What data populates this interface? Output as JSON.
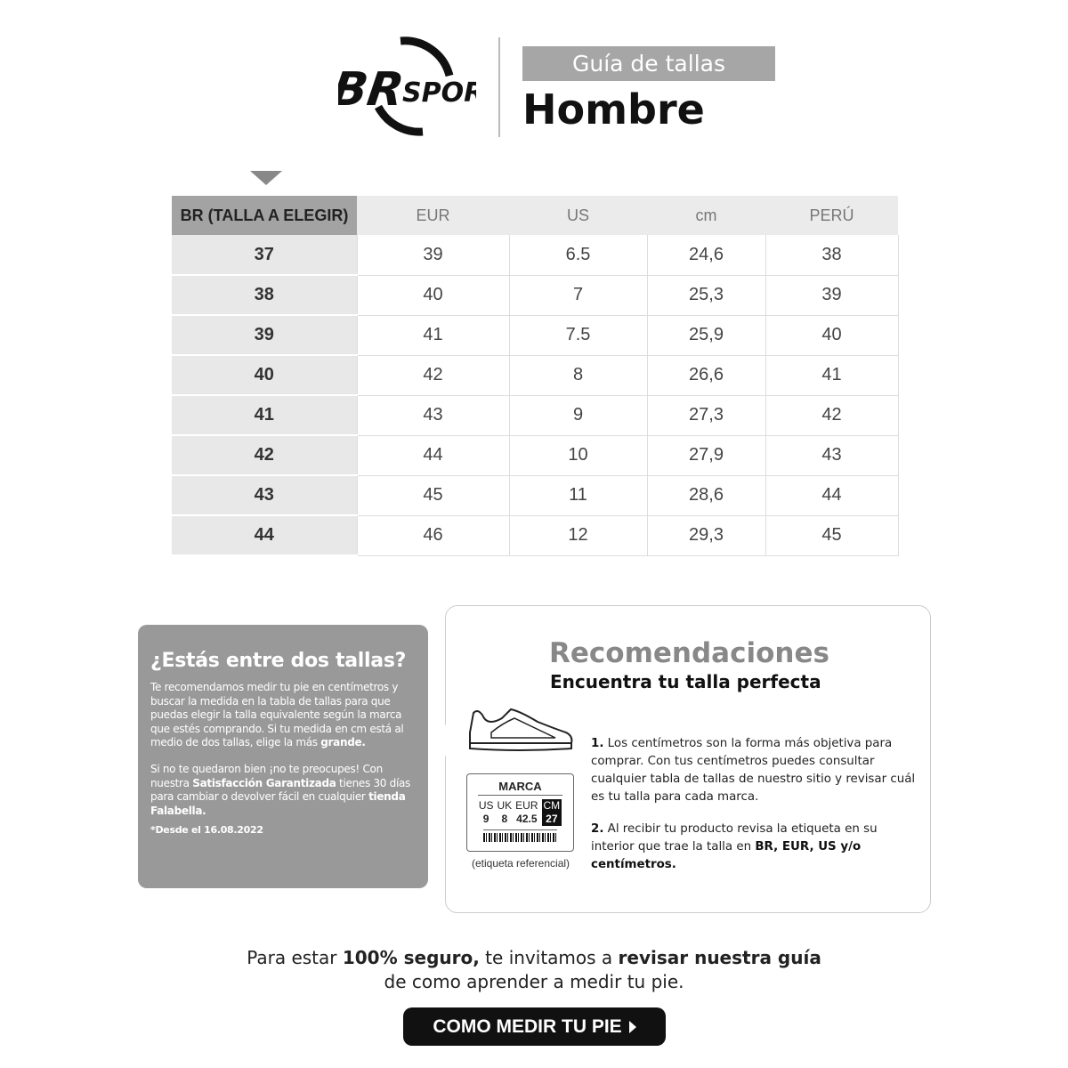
{
  "header": {
    "brand": "BR SPORT",
    "subtitle": "Guía de tallas",
    "title": "Hombre"
  },
  "table": {
    "headers": [
      "BR (TALLA A ELEGIR)",
      "EUR",
      "US",
      "cm",
      "PERÚ"
    ],
    "rows": [
      [
        "37",
        "39",
        "6.5",
        "24,6",
        "38"
      ],
      [
        "38",
        "40",
        "7",
        "25,3",
        "39"
      ],
      [
        "39",
        "41",
        "7.5",
        "25,9",
        "40"
      ],
      [
        "40",
        "42",
        "8",
        "26,6",
        "41"
      ],
      [
        "41",
        "43",
        "9",
        "27,3",
        "42"
      ],
      [
        "42",
        "44",
        "10",
        "27,9",
        "43"
      ],
      [
        "43",
        "45",
        "11",
        "28,6",
        "44"
      ],
      [
        "44",
        "46",
        "12",
        "29,3",
        "45"
      ]
    ]
  },
  "between": {
    "title": "¿Estás entre dos tallas?",
    "p1": "Te recomendamos medir tu pie en centímetros y buscar la medida en la tabla de tallas para que puedas elegir la talla equivalente según la marca que estés comprando. Si tu medida en cm está al medio de dos tallas, elige la más ",
    "p1_bold": "grande.",
    "p2a": "Si no te quedaron bien ¡no te preocupes! Con nuestra ",
    "p2_bold1": "Satisfacción Garantizada",
    "p2b": " tienes 30 días para cambiar o devolver fácil en cualquier ",
    "p2_bold2": "tienda Falabella.",
    "note": "*Desde el 16.08.2022"
  },
  "recommendations": {
    "title": "Recomendaciones",
    "subtitle": "Encuentra tu talla perfecta",
    "label": {
      "brand": "MARCA",
      "cols": [
        [
          "US",
          "9"
        ],
        [
          "UK",
          "8"
        ],
        [
          "EUR",
          "42.5"
        ],
        [
          "CM",
          "27"
        ]
      ],
      "caption": "(etiqueta referencial)"
    },
    "step1_num": "1.",
    "step1": " Los centímetros son la forma más objetiva para comprar. Con tus centímetros puedes consultar cualquier tabla de tallas de nuestro sitio y revisar cuál es tu talla para cada marca.",
    "step2_num": "2.",
    "step2a": " Al recibir tu producto revisa la etiqueta en su interior que trae la talla en ",
    "step2_bold": "BR, EUR, US y/o centímetros."
  },
  "footer": {
    "a": "Para estar ",
    "b": "100% seguro,",
    "c": " te invitamos a ",
    "d": "revisar nuestra guía",
    "line2": "de como aprender a medir tu pie.",
    "cta": "COMO MEDIR TU PIE"
  }
}
